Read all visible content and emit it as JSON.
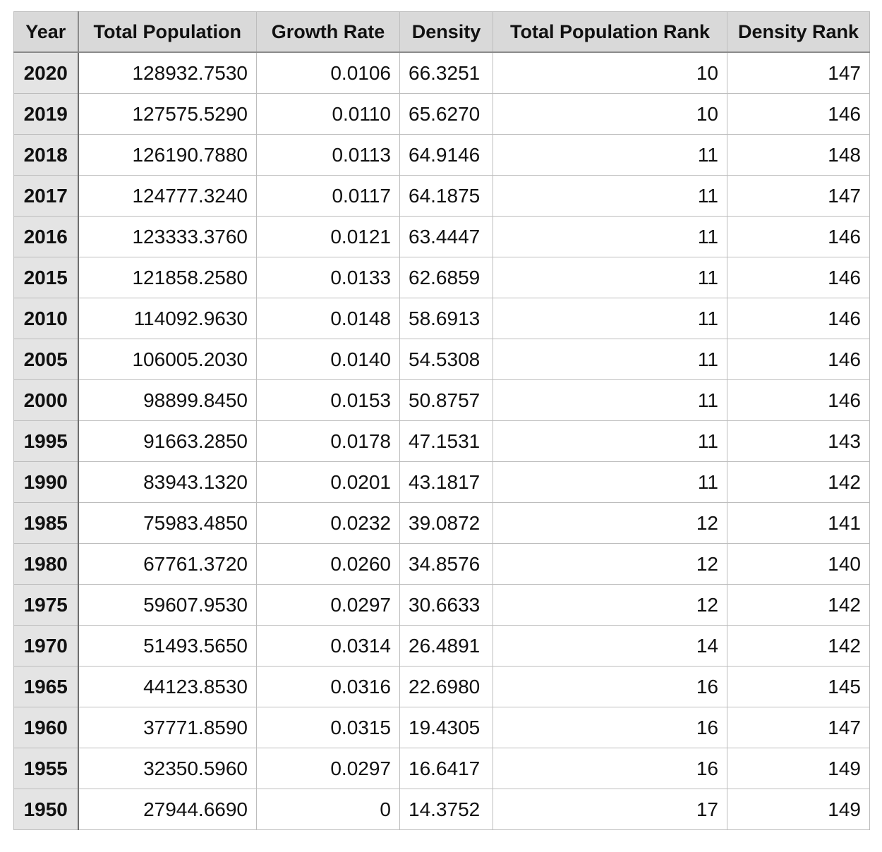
{
  "table": {
    "columns": [
      "Year",
      "Total Population",
      "Growth Rate",
      "Density",
      "Total Population Rank",
      "Density Rank"
    ],
    "rows": [
      [
        "2020",
        "128932.7530",
        "0.0106",
        "66.3251",
        "10",
        "147"
      ],
      [
        "2019",
        "127575.5290",
        "0.0110",
        "65.6270",
        "10",
        "146"
      ],
      [
        "2018",
        "126190.7880",
        "0.0113",
        "64.9146",
        "11",
        "148"
      ],
      [
        "2017",
        "124777.3240",
        "0.0117",
        "64.1875",
        "11",
        "147"
      ],
      [
        "2016",
        "123333.3760",
        "0.0121",
        "63.4447",
        "11",
        "146"
      ],
      [
        "2015",
        "121858.2580",
        "0.0133",
        "62.6859",
        "11",
        "146"
      ],
      [
        "2010",
        "114092.9630",
        "0.0148",
        "58.6913",
        "11",
        "146"
      ],
      [
        "2005",
        "106005.2030",
        "0.0140",
        "54.5308",
        "11",
        "146"
      ],
      [
        "2000",
        "98899.8450",
        "0.0153",
        "50.8757",
        "11",
        "146"
      ],
      [
        "1995",
        "91663.2850",
        "0.0178",
        "47.1531",
        "11",
        "143"
      ],
      [
        "1990",
        "83943.1320",
        "0.0201",
        "43.1817",
        "11",
        "142"
      ],
      [
        "1985",
        "75983.4850",
        "0.0232",
        "39.0872",
        "12",
        "141"
      ],
      [
        "1980",
        "67761.3720",
        "0.0260",
        "34.8576",
        "12",
        "140"
      ],
      [
        "1975",
        "59607.9530",
        "0.0297",
        "30.6633",
        "12",
        "142"
      ],
      [
        "1970",
        "51493.5650",
        "0.0314",
        "26.4891",
        "14",
        "142"
      ],
      [
        "1965",
        "44123.8530",
        "0.0316",
        "22.6980",
        "16",
        "145"
      ],
      [
        "1960",
        "37771.8590",
        "0.0315",
        "19.4305",
        "16",
        "147"
      ],
      [
        "1955",
        "32350.5960",
        "0.0297",
        "16.6417",
        "16",
        "149"
      ],
      [
        "1950",
        "27944.6690",
        "0",
        "14.3752",
        "17",
        "149"
      ]
    ]
  }
}
